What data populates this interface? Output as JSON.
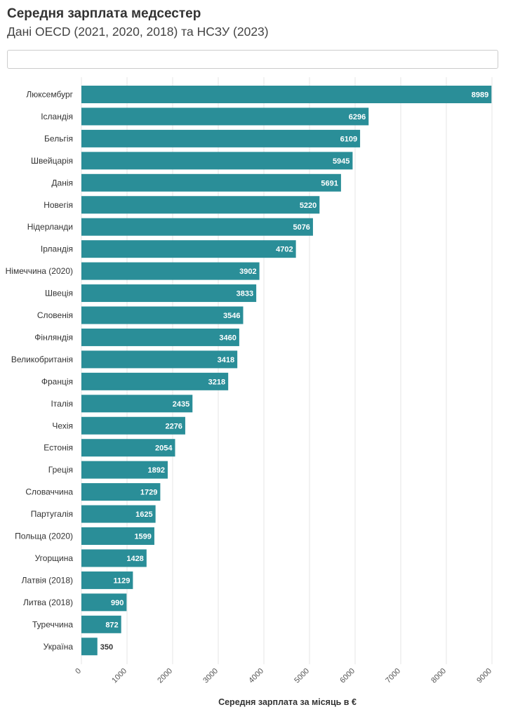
{
  "header": {
    "title": "Середня зарплата медсестер",
    "subtitle": "Дані OECD (2021, 2020, 2018) та НСЗУ (2023)"
  },
  "search": {
    "value": ""
  },
  "colors": {
    "bar": "#2a8e98",
    "grid": "#e6e6e6",
    "text": "#333333",
    "value_label_inside": "#ffffff",
    "value_label_outside": "#333333"
  },
  "chart_data": {
    "type": "bar",
    "orientation": "horizontal",
    "categories": [
      "Люксембург",
      "Ісландія",
      "Бельгія",
      "Швейцарія",
      "Данія",
      "Новегія",
      "Нідерланди",
      "Ірландія",
      "Німеччина (2020)",
      "Швеція",
      "Словенія",
      "Фінляндія",
      "Великобританія",
      "Франція",
      "Італія",
      "Чехія",
      "Естонія",
      "Греція",
      "Словаччина",
      "Партугалія",
      "Польща (2020)",
      "Угорщина",
      "Латвія (2018)",
      "Литва (2018)",
      "Туреччина",
      "Україна"
    ],
    "values": [
      8989,
      6296,
      6109,
      5945,
      5691,
      5220,
      5076,
      4702,
      3902,
      3833,
      3546,
      3460,
      3418,
      3218,
      2435,
      2276,
      2054,
      1892,
      1729,
      1625,
      1599,
      1428,
      1129,
      990,
      872,
      350
    ],
    "value_labels": [
      "8989",
      "6296",
      "6109",
      "5945",
      "5691",
      "5220",
      "5076",
      "4702",
      "3902",
      "3833",
      "3546",
      "3460",
      "3418",
      "3218",
      "2435",
      "2276",
      "2054",
      "1892",
      "1729",
      "1625",
      "1599",
      "1428",
      "1129",
      "990",
      "872",
      "350"
    ],
    "xlabel": "Середня зарплата за місяць в €",
    "ylabel": "",
    "xlim": [
      0,
      9000
    ],
    "x_ticks": [
      0,
      1000,
      2000,
      3000,
      4000,
      5000,
      6000,
      7000,
      8000,
      9000
    ],
    "x_tick_labels": [
      "0",
      "1000",
      "2000",
      "3000",
      "4000",
      "5000",
      "6000",
      "7000",
      "8000",
      "9000"
    ],
    "grid": true,
    "legend": "none"
  }
}
